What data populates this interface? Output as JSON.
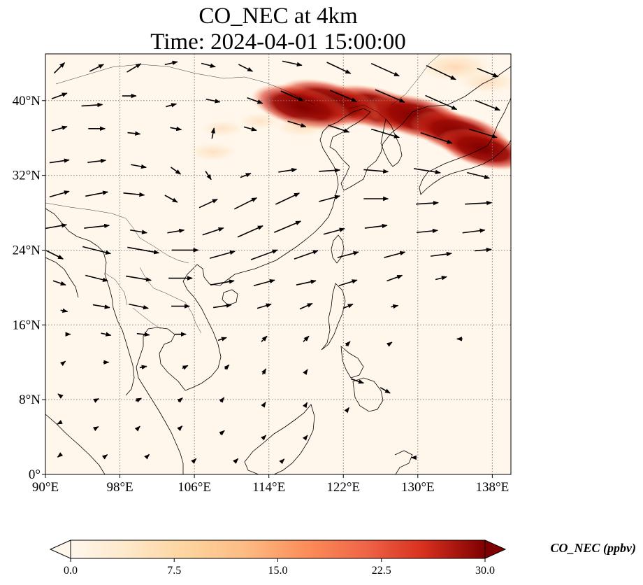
{
  "title": {
    "line1": "CO_NEC at 4km",
    "line2": "Time: 2024-04-01 15:00:00"
  },
  "map": {
    "lon_range": [
      90,
      140
    ],
    "lat_range": [
      0,
      45
    ],
    "lon_ticks": [
      {
        "value": 90,
        "label": "90°E"
      },
      {
        "value": 98,
        "label": "98°E"
      },
      {
        "value": 106,
        "label": "106°E"
      },
      {
        "value": 114,
        "label": "114°E"
      },
      {
        "value": 122,
        "label": "122°E"
      },
      {
        "value": 130,
        "label": "130°E"
      },
      {
        "value": 138,
        "label": "138°E"
      }
    ],
    "lat_ticks": [
      {
        "value": 0,
        "label": "0°"
      },
      {
        "value": 8,
        "label": "8°N"
      },
      {
        "value": 16,
        "label": "16°N"
      },
      {
        "value": 24,
        "label": "24°N"
      },
      {
        "value": 32,
        "label": "32°N"
      },
      {
        "value": 40,
        "label": "40°N"
      }
    ],
    "gridlines": true,
    "background_color": "#fff7ec",
    "plume_color": "#7f0000"
  },
  "colorbar": {
    "label": "CO_NEC (ppbv)",
    "min": 0.0,
    "max": 30.0,
    "extend": "both",
    "colormap": "OrRd",
    "ticks": [
      {
        "value": 0.0,
        "label": "0.0"
      },
      {
        "value": 7.5,
        "label": "7.5"
      },
      {
        "value": 15.0,
        "label": "15.0"
      },
      {
        "value": 22.5,
        "label": "22.5"
      },
      {
        "value": 30.0,
        "label": "30.0"
      }
    ]
  },
  "plumes": [
    {
      "lon": 125.5,
      "lat": 39.2,
      "value": 30
    },
    {
      "lon": 130.0,
      "lat": 38.2,
      "value": 30
    },
    {
      "lon": 134.5,
      "lat": 36.5,
      "value": 28
    },
    {
      "lon": 120.5,
      "lat": 39.8,
      "value": 30
    },
    {
      "lon": 117.5,
      "lat": 39.3,
      "value": 28
    },
    {
      "lon": 137.0,
      "lat": 34.8,
      "value": 22
    },
    {
      "lon": 134.0,
      "lat": 43.6,
      "value": 8
    },
    {
      "lon": 137.5,
      "lat": 42.0,
      "value": 5
    },
    {
      "lon": 108.0,
      "lat": 34.5,
      "value": 3
    },
    {
      "lon": 109.0,
      "lat": 37.0,
      "value": 2
    },
    {
      "lon": 117.5,
      "lat": 37.2,
      "value": 4
    },
    {
      "lon": 113.0,
      "lat": 37.8,
      "value": 2
    }
  ],
  "wind_vectors": [
    {
      "lon": 91.5,
      "lat": 43.5,
      "u": 1.5,
      "v": 1.5
    },
    {
      "lon": 95.5,
      "lat": 43.5,
      "u": 2.0,
      "v": 1.0
    },
    {
      "lon": 99.5,
      "lat": 43.5,
      "u": 2.0,
      "v": 1.2
    },
    {
      "lon": 103.5,
      "lat": 44.0,
      "u": 1.8,
      "v": 0.4
    },
    {
      "lon": 107.5,
      "lat": 43.8,
      "u": 2.0,
      "v": -0.5
    },
    {
      "lon": 111.5,
      "lat": 43.5,
      "u": 2.0,
      "v": -1.0
    },
    {
      "lon": 116.5,
      "lat": 44.0,
      "u": 2.8,
      "v": -0.6
    },
    {
      "lon": 121.5,
      "lat": 43.5,
      "u": 3.4,
      "v": -1.6
    },
    {
      "lon": 126.5,
      "lat": 43.3,
      "u": 4.0,
      "v": -1.8
    },
    {
      "lon": 132.5,
      "lat": 43.0,
      "u": 4.2,
      "v": -2.0
    },
    {
      "lon": 137.5,
      "lat": 43.0,
      "u": 3.0,
      "v": -1.2
    },
    {
      "lon": 91.5,
      "lat": 40.5,
      "u": 2.2,
      "v": 0.8
    },
    {
      "lon": 95.0,
      "lat": 39.5,
      "u": 3.0,
      "v": 0.2
    },
    {
      "lon": 99.0,
      "lat": 40.5,
      "u": 2.0,
      "v": 0.0
    },
    {
      "lon": 103.5,
      "lat": 39.5,
      "u": 1.5,
      "v": 0.4
    },
    {
      "lon": 108.0,
      "lat": 40.0,
      "u": 2.0,
      "v": -0.4
    },
    {
      "lon": 112.5,
      "lat": 40.0,
      "u": 2.2,
      "v": -0.8
    },
    {
      "lon": 116.5,
      "lat": 40.5,
      "u": 3.2,
      "v": -1.4
    },
    {
      "lon": 122.0,
      "lat": 40.5,
      "u": 3.8,
      "v": -1.6
    },
    {
      "lon": 127.0,
      "lat": 40.5,
      "u": 4.2,
      "v": -1.8
    },
    {
      "lon": 132.5,
      "lat": 39.8,
      "u": 4.5,
      "v": -2.0
    },
    {
      "lon": 137.5,
      "lat": 39.5,
      "u": 3.5,
      "v": -1.4
    },
    {
      "lon": 91.5,
      "lat": 37.0,
      "u": 2.2,
      "v": 0.6
    },
    {
      "lon": 95.5,
      "lat": 37.0,
      "u": 2.4,
      "v": 0.0
    },
    {
      "lon": 99.5,
      "lat": 36.5,
      "u": 1.8,
      "v": -0.2
    },
    {
      "lon": 104.0,
      "lat": 37.0,
      "u": 1.6,
      "v": -0.3
    },
    {
      "lon": 108.0,
      "lat": 36.5,
      "u": 0.3,
      "v": 1.5
    },
    {
      "lon": 112.0,
      "lat": 37.0,
      "u": 1.8,
      "v": -0.5
    },
    {
      "lon": 117.0,
      "lat": 37.5,
      "u": 2.6,
      "v": -0.8
    },
    {
      "lon": 121.5,
      "lat": 37.0,
      "u": 3.0,
      "v": -1.0
    },
    {
      "lon": 126.5,
      "lat": 36.5,
      "u": 4.0,
      "v": -1.2
    },
    {
      "lon": 132.0,
      "lat": 36.0,
      "u": 4.5,
      "v": -1.5
    },
    {
      "lon": 137.0,
      "lat": 36.5,
      "u": 4.0,
      "v": -1.2
    },
    {
      "lon": 91.5,
      "lat": 33.5,
      "u": 2.8,
      "v": 0.4
    },
    {
      "lon": 95.5,
      "lat": 33.5,
      "u": 2.6,
      "v": 0.3
    },
    {
      "lon": 100.0,
      "lat": 33.0,
      "u": 2.2,
      "v": -0.4
    },
    {
      "lon": 104.0,
      "lat": 32.5,
      "u": 1.4,
      "v": -1.0
    },
    {
      "lon": 107.5,
      "lat": 32.0,
      "u": 0.8,
      "v": -1.2
    },
    {
      "lon": 111.5,
      "lat": 32.0,
      "u": 1.5,
      "v": 0.6
    },
    {
      "lon": 116.0,
      "lat": 32.5,
      "u": 2.6,
      "v": 0.4
    },
    {
      "lon": 120.5,
      "lat": 32.5,
      "u": 3.0,
      "v": 0.2
    },
    {
      "lon": 125.5,
      "lat": 32.5,
      "u": 3.5,
      "v": -0.3
    },
    {
      "lon": 131.0,
      "lat": 32.5,
      "u": 3.8,
      "v": -0.6
    },
    {
      "lon": 136.5,
      "lat": 32.0,
      "u": 3.2,
      "v": -0.8
    },
    {
      "lon": 91.5,
      "lat": 30.0,
      "u": 2.8,
      "v": 0.8
    },
    {
      "lon": 95.5,
      "lat": 30.0,
      "u": 3.2,
      "v": 0.6
    },
    {
      "lon": 99.5,
      "lat": 30.0,
      "u": 3.0,
      "v": -0.3
    },
    {
      "lon": 103.5,
      "lat": 29.5,
      "u": 1.8,
      "v": -1.0
    },
    {
      "lon": 107.5,
      "lat": 29.0,
      "u": 2.6,
      "v": 1.2
    },
    {
      "lon": 111.5,
      "lat": 29.0,
      "u": 3.2,
      "v": 1.6
    },
    {
      "lon": 116.0,
      "lat": 29.5,
      "u": 3.4,
      "v": 1.6
    },
    {
      "lon": 120.5,
      "lat": 29.5,
      "u": 3.0,
      "v": 0.8
    },
    {
      "lon": 125.5,
      "lat": 29.5,
      "u": 3.5,
      "v": 0.0
    },
    {
      "lon": 131.0,
      "lat": 29.0,
      "u": 3.2,
      "v": 0.2
    },
    {
      "lon": 136.5,
      "lat": 29.0,
      "u": 3.8,
      "v": 0.2
    },
    {
      "lon": 91.0,
      "lat": 26.5,
      "u": 3.4,
      "v": 0.6
    },
    {
      "lon": 95.5,
      "lat": 26.5,
      "u": 3.6,
      "v": 0.4
    },
    {
      "lon": 100.0,
      "lat": 26.0,
      "u": 2.4,
      "v": -0.4
    },
    {
      "lon": 104.0,
      "lat": 26.0,
      "u": 2.4,
      "v": 0.4
    },
    {
      "lon": 108.0,
      "lat": 26.0,
      "u": 3.0,
      "v": 1.0
    },
    {
      "lon": 112.0,
      "lat": 26.0,
      "u": 3.6,
      "v": 1.6
    },
    {
      "lon": 116.0,
      "lat": 26.5,
      "u": 3.8,
      "v": 1.6
    },
    {
      "lon": 121.0,
      "lat": 26.0,
      "u": 3.0,
      "v": 0.8
    },
    {
      "lon": 125.5,
      "lat": 26.5,
      "u": 3.2,
      "v": 0.4
    },
    {
      "lon": 131.0,
      "lat": 26.0,
      "u": 3.0,
      "v": 0.3
    },
    {
      "lon": 136.0,
      "lat": 26.0,
      "u": 3.2,
      "v": 0.4
    },
    {
      "lon": 91.0,
      "lat": 23.5,
      "u": 2.4,
      "v": -1.2
    },
    {
      "lon": 95.5,
      "lat": 24.0,
      "u": 4.0,
      "v": -1.0
    },
    {
      "lon": 100.5,
      "lat": 24.0,
      "u": 4.5,
      "v": -0.8
    },
    {
      "lon": 105.0,
      "lat": 24.0,
      "u": 3.8,
      "v": 0.0
    },
    {
      "lon": 109.0,
      "lat": 23.5,
      "u": 3.6,
      "v": 1.0
    },
    {
      "lon": 113.5,
      "lat": 23.5,
      "u": 3.8,
      "v": 1.4
    },
    {
      "lon": 118.0,
      "lat": 23.5,
      "u": 3.4,
      "v": 1.2
    },
    {
      "lon": 122.5,
      "lat": 23.5,
      "u": 3.0,
      "v": 0.8
    },
    {
      "lon": 127.5,
      "lat": 23.5,
      "u": 3.0,
      "v": 0.8
    },
    {
      "lon": 132.5,
      "lat": 23.5,
      "u": 3.0,
      "v": 0.4
    },
    {
      "lon": 137.0,
      "lat": 24.0,
      "u": 2.4,
      "v": 0.2
    },
    {
      "lon": 91.5,
      "lat": 20.5,
      "u": 1.8,
      "v": -0.6
    },
    {
      "lon": 95.5,
      "lat": 21.0,
      "u": 3.2,
      "v": -0.8
    },
    {
      "lon": 100.0,
      "lat": 21.0,
      "u": 3.6,
      "v": -0.6
    },
    {
      "lon": 104.5,
      "lat": 21.0,
      "u": 3.4,
      "v": 0.0
    },
    {
      "lon": 109.0,
      "lat": 20.5,
      "u": 3.4,
      "v": 0.6
    },
    {
      "lon": 113.5,
      "lat": 20.5,
      "u": 3.0,
      "v": 0.8
    },
    {
      "lon": 118.0,
      "lat": 20.5,
      "u": 2.8,
      "v": 0.6
    },
    {
      "lon": 122.5,
      "lat": 20.5,
      "u": 2.6,
      "v": 0.8
    },
    {
      "lon": 127.5,
      "lat": 21.0,
      "u": 2.2,
      "v": 0.8
    },
    {
      "lon": 132.5,
      "lat": 21.0,
      "u": 1.6,
      "v": 0.4
    },
    {
      "lon": 92.0,
      "lat": 17.5,
      "u": 1.0,
      "v": -0.2
    },
    {
      "lon": 96.0,
      "lat": 18.0,
      "u": 2.4,
      "v": -0.4
    },
    {
      "lon": 100.0,
      "lat": 18.0,
      "u": 2.8,
      "v": -0.6
    },
    {
      "lon": 104.5,
      "lat": 18.0,
      "u": 2.6,
      "v": 0.0
    },
    {
      "lon": 109.0,
      "lat": 18.0,
      "u": 2.6,
      "v": 0.4
    },
    {
      "lon": 113.5,
      "lat": 18.0,
      "u": 2.0,
      "v": 0.6
    },
    {
      "lon": 118.0,
      "lat": 18.0,
      "u": 1.8,
      "v": 0.8
    },
    {
      "lon": 122.5,
      "lat": 18.0,
      "u": 1.4,
      "v": 0.6
    },
    {
      "lon": 127.5,
      "lat": 18.0,
      "u": 1.0,
      "v": 0.2
    },
    {
      "lon": 92.5,
      "lat": 15.0,
      "u": 0.5,
      "v": 0.0
    },
    {
      "lon": 96.5,
      "lat": 15.0,
      "u": 1.4,
      "v": -0.3
    },
    {
      "lon": 100.5,
      "lat": 15.0,
      "u": 1.8,
      "v": -0.2
    },
    {
      "lon": 104.5,
      "lat": 15.0,
      "u": 1.6,
      "v": 0.0
    },
    {
      "lon": 109.0,
      "lat": 14.5,
      "u": 1.2,
      "v": 0.4
    },
    {
      "lon": 113.5,
      "lat": 14.5,
      "u": 0.8,
      "v": 0.8
    },
    {
      "lon": 118.0,
      "lat": 14.5,
      "u": 0.8,
      "v": 0.8
    },
    {
      "lon": 122.5,
      "lat": 14.0,
      "u": 0.6,
      "v": 0.6
    },
    {
      "lon": 127.0,
      "lat": 14.0,
      "u": 0.6,
      "v": 0.4
    },
    {
      "lon": 134.5,
      "lat": 14.5,
      "u": -0.8,
      "v": 0.0
    },
    {
      "lon": 92.0,
      "lat": 12.0,
      "u": 0.4,
      "v": 0.3
    },
    {
      "lon": 96.5,
      "lat": 12.0,
      "u": 0.8,
      "v": 0.0
    },
    {
      "lon": 100.5,
      "lat": 11.5,
      "u": 1.0,
      "v": 0.2
    },
    {
      "lon": 105.0,
      "lat": 11.5,
      "u": 0.8,
      "v": 0.4
    },
    {
      "lon": 109.5,
      "lat": 11.5,
      "u": 0.6,
      "v": 0.6
    },
    {
      "lon": 113.5,
      "lat": 11.0,
      "u": 0.5,
      "v": 0.8
    },
    {
      "lon": 118.0,
      "lat": 11.0,
      "u": 0.4,
      "v": 0.6
    },
    {
      "lon": 123.5,
      "lat": 10.0,
      "u": 1.8,
      "v": -0.6
    },
    {
      "lon": 126.5,
      "lat": 9.0,
      "u": 1.4,
      "v": -0.8
    },
    {
      "lon": 91.5,
      "lat": 8.5,
      "u": -0.4,
      "v": 0.3
    },
    {
      "lon": 95.5,
      "lat": 8.0,
      "u": 0.6,
      "v": 0.3
    },
    {
      "lon": 100.0,
      "lat": 8.0,
      "u": 0.8,
      "v": 0.4
    },
    {
      "lon": 104.5,
      "lat": 8.0,
      "u": 0.6,
      "v": 0.5
    },
    {
      "lon": 109.0,
      "lat": 8.0,
      "u": 0.5,
      "v": 0.6
    },
    {
      "lon": 113.5,
      "lat": 7.5,
      "u": 0.4,
      "v": 0.6
    },
    {
      "lon": 118.0,
      "lat": 7.5,
      "u": 0.3,
      "v": 0.5
    },
    {
      "lon": 122.5,
      "lat": 7.0,
      "u": 0.3,
      "v": 0.4
    },
    {
      "lon": 91.5,
      "lat": 5.5,
      "u": -0.6,
      "v": -0.3
    },
    {
      "lon": 95.5,
      "lat": 5.0,
      "u": 0.5,
      "v": 0.3
    },
    {
      "lon": 100.0,
      "lat": 5.0,
      "u": 0.4,
      "v": 0.4
    },
    {
      "lon": 104.5,
      "lat": 5.0,
      "u": 0.5,
      "v": 0.5
    },
    {
      "lon": 109.0,
      "lat": 4.5,
      "u": 0.6,
      "v": 0.5
    },
    {
      "lon": 113.5,
      "lat": 4.0,
      "u": 0.5,
      "v": 0.5
    },
    {
      "lon": 118.0,
      "lat": 4.0,
      "u": 0.4,
      "v": 0.5
    },
    {
      "lon": 91.5,
      "lat": 2.0,
      "u": -0.5,
      "v": -0.4
    },
    {
      "lon": 96.5,
      "lat": 2.0,
      "u": 0.4,
      "v": 0.3
    },
    {
      "lon": 101.0,
      "lat": 2.0,
      "u": 0.4,
      "v": 0.4
    },
    {
      "lon": 106.0,
      "lat": 1.5,
      "u": 0.5,
      "v": 0.5
    },
    {
      "lon": 110.5,
      "lat": 1.5,
      "u": 0.5,
      "v": 0.5
    },
    {
      "lon": 115.5,
      "lat": 1.5,
      "u": 0.4,
      "v": 0.4
    },
    {
      "lon": 129.5,
      "lat": 1.8,
      "u": -0.5,
      "v": 0.0
    }
  ]
}
